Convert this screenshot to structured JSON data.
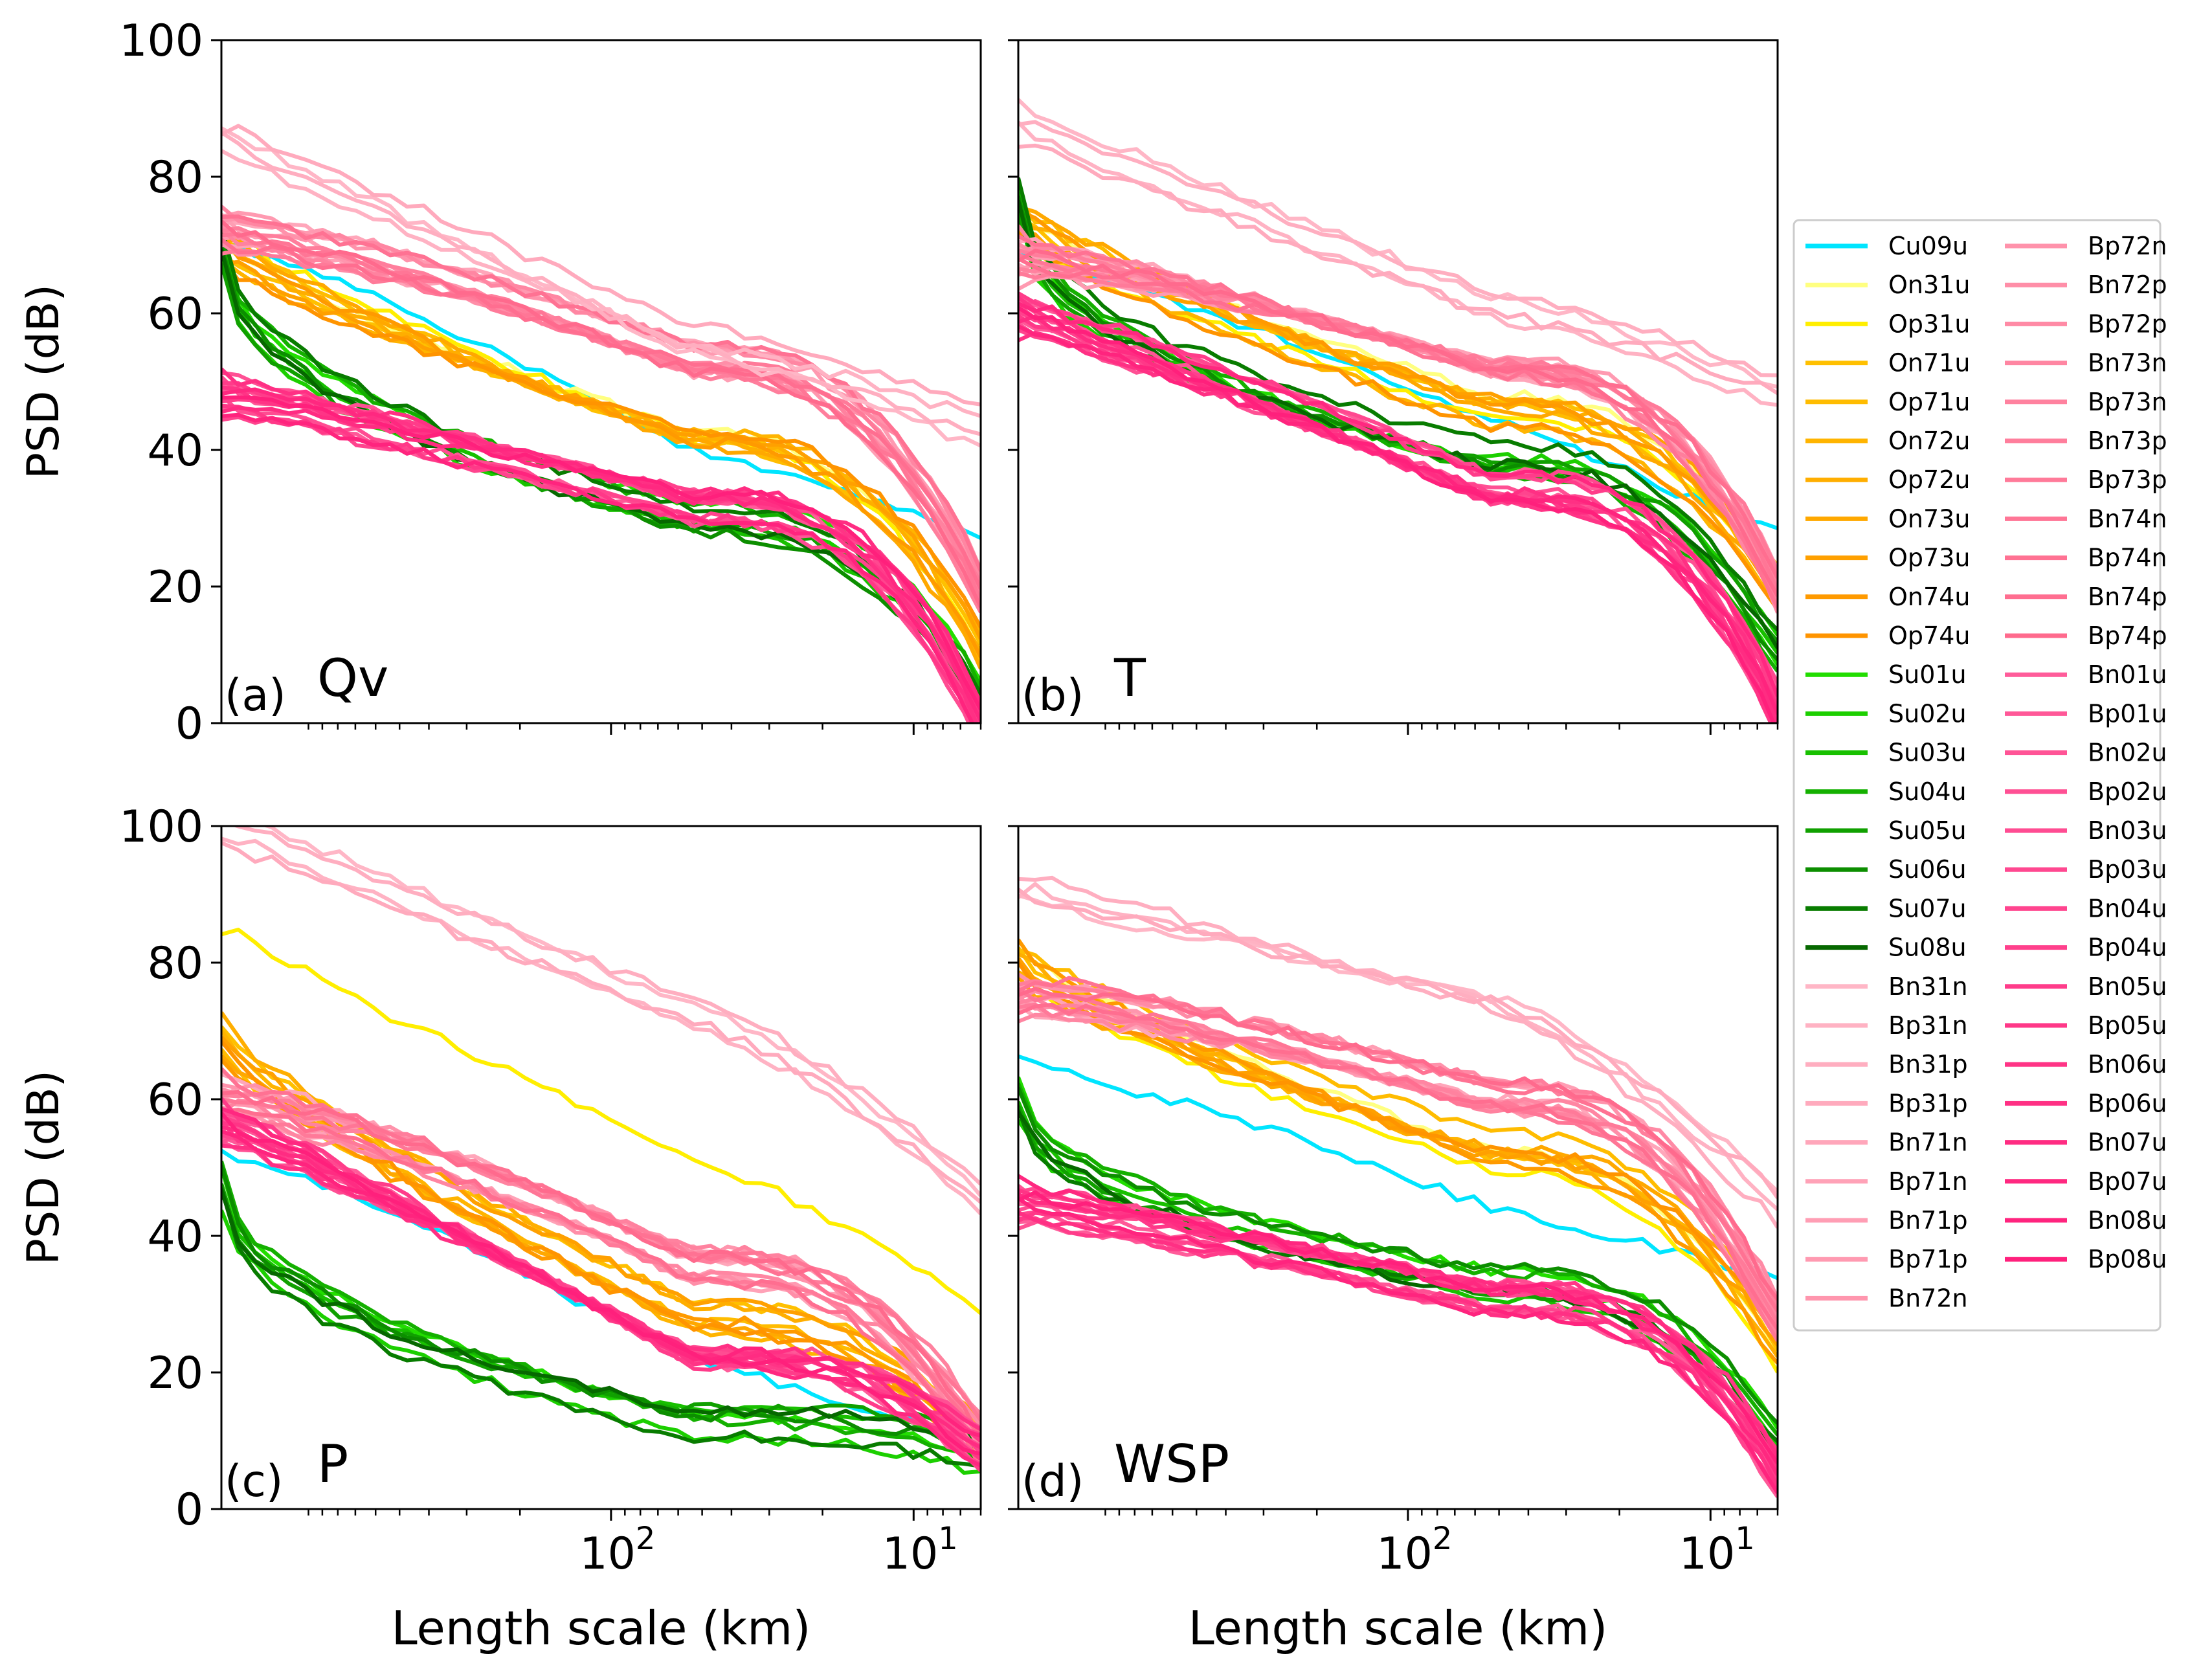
{
  "figure": {
    "ylabel": "PSD (dB)",
    "xlabel": "Length scale (km)"
  },
  "legend": {
    "entries": [
      {
        "name": "Cu09u",
        "color": "#00e5ff"
      },
      {
        "name": "On31u",
        "color": "#ffff80"
      },
      {
        "name": "Op31u",
        "color": "#ffee00"
      },
      {
        "name": "On71u",
        "color": "#ffc000"
      },
      {
        "name": "Op71u",
        "color": "#ffbc00"
      },
      {
        "name": "On72u",
        "color": "#ffb400"
      },
      {
        "name": "Op72u",
        "color": "#ffae00"
      },
      {
        "name": "On73u",
        "color": "#ffa800"
      },
      {
        "name": "Op73u",
        "color": "#ffa000"
      },
      {
        "name": "On74u",
        "color": "#ff9a00"
      },
      {
        "name": "Op74u",
        "color": "#ff9400"
      },
      {
        "name": "Su01u",
        "color": "#22dd00"
      },
      {
        "name": "Su02u",
        "color": "#1ccf00"
      },
      {
        "name": "Su03u",
        "color": "#18c000"
      },
      {
        "name": "Su04u",
        "color": "#14b000"
      },
      {
        "name": "Su05u",
        "color": "#10a000"
      },
      {
        "name": "Su06u",
        "color": "#0c8e00"
      },
      {
        "name": "Su07u",
        "color": "#087c00"
      },
      {
        "name": "Su08u",
        "color": "#066800"
      },
      {
        "name": "Bn31n",
        "color": "#ffb6c6"
      },
      {
        "name": "Bp31n",
        "color": "#ffb2c3"
      },
      {
        "name": "Bn31p",
        "color": "#ffaec0"
      },
      {
        "name": "Bp31p",
        "color": "#ffaabd"
      },
      {
        "name": "Bn71n",
        "color": "#ffa6ba"
      },
      {
        "name": "Bp71n",
        "color": "#ffa2b7"
      },
      {
        "name": "Bn71p",
        "color": "#ff9eb4"
      },
      {
        "name": "Bp71p",
        "color": "#ff9ab1"
      },
      {
        "name": "Bn72n",
        "color": "#ff96ae"
      },
      {
        "name": "Bp72n",
        "color": "#ff92ab"
      },
      {
        "name": "Bn72p",
        "color": "#ff8ea8"
      },
      {
        "name": "Bp72p",
        "color": "#ff8aa5"
      },
      {
        "name": "Bn73n",
        "color": "#ff86a2"
      },
      {
        "name": "Bp73n",
        "color": "#ff829f"
      },
      {
        "name": "Bn73p",
        "color": "#ff7e9c"
      },
      {
        "name": "Bp73p",
        "color": "#ff7a99"
      },
      {
        "name": "Bn74n",
        "color": "#ff7696"
      },
      {
        "name": "Bp74n",
        "color": "#ff7293"
      },
      {
        "name": "Bn74p",
        "color": "#ff6e90"
      },
      {
        "name": "Bp74p",
        "color": "#ff6a8d"
      },
      {
        "name": "Bn01u",
        "color": "#ff5c9a"
      },
      {
        "name": "Bp01u",
        "color": "#ff5898"
      },
      {
        "name": "Bn02u",
        "color": "#ff5496"
      },
      {
        "name": "Bp02u",
        "color": "#ff5094"
      },
      {
        "name": "Bn03u",
        "color": "#ff4c92"
      },
      {
        "name": "Bp03u",
        "color": "#ff4890"
      },
      {
        "name": "Bn04u",
        "color": "#ff448e"
      },
      {
        "name": "Bp04u",
        "color": "#ff408c"
      },
      {
        "name": "Bn05u",
        "color": "#ff3c8a"
      },
      {
        "name": "Bp05u",
        "color": "#ff3888"
      },
      {
        "name": "Bn06u",
        "color": "#ff3486"
      },
      {
        "name": "Bp06u",
        "color": "#ff3084"
      },
      {
        "name": "Bn07u",
        "color": "#ff2c82"
      },
      {
        "name": "Bp07u",
        "color": "#ff2880"
      },
      {
        "name": "Bn08u",
        "color": "#ff247e"
      },
      {
        "name": "Bp08u",
        "color": "#ff207c"
      }
    ]
  },
  "chart_data": [
    {
      "type": "line",
      "id": "a",
      "label": "(a)",
      "variable": "Qv",
      "ylim": [
        0,
        100
      ],
      "xlim_km": [
        1940,
        6
      ],
      "yticks": [
        0,
        20,
        40,
        60,
        80,
        100
      ],
      "xticks": [
        "10^2",
        "10^1"
      ],
      "xscale": "log",
      "xaxis_inverted": true,
      "groups": {
        "Cu": {
          "start": 70,
          "mid": 38,
          "end": 25
        },
        "O": {
          "start": 70,
          "mid": 42,
          "end": 12
        },
        "Su": {
          "start": 70,
          "mid": 30,
          "end": 4
        },
        "Bpale": {
          "start": 72,
          "mid": 53,
          "end": 20
        },
        "Bhigh": {
          "start": 85,
          "mid": 55,
          "end": 43
        },
        "Bdeep": {
          "start": 48,
          "mid": 32,
          "end": 0
        }
      }
    },
    {
      "type": "line",
      "id": "b",
      "label": "(b)",
      "variable": "T",
      "ylim": [
        0,
        100
      ],
      "xlim_km": [
        1940,
        6
      ],
      "yticks": [
        0,
        20,
        40,
        60,
        80,
        100
      ],
      "xticks": [
        "10^2",
        "10^1"
      ],
      "xscale": "log",
      "xaxis_inverted": true,
      "groups": {
        "Cu": {
          "start": 68,
          "mid": 46,
          "end": 30
        },
        "O": {
          "start": 74,
          "mid": 46,
          "end": 20
        },
        "Su": {
          "start": 76,
          "mid": 38,
          "end": 10
        },
        "Bpale": {
          "start": 68,
          "mid": 52,
          "end": 20
        },
        "Bhigh": {
          "start": 88,
          "mid": 62,
          "end": 50
        },
        "Bdeep": {
          "start": 60,
          "mid": 34,
          "end": 2
        }
      }
    },
    {
      "type": "line",
      "id": "c",
      "label": "(c)",
      "variable": "P",
      "ylim": [
        0,
        100
      ],
      "xlim_km": [
        1940,
        6
      ],
      "yticks": [
        0,
        20,
        40,
        60,
        80,
        100
      ],
      "xticks": [
        "10^2",
        "10^1"
      ],
      "xscale": "log",
      "xaxis_inverted": true,
      "groups": {
        "Cu": {
          "start": 52,
          "mid": 22,
          "end": 10
        },
        "Op31": {
          "start": 86,
          "mid": 50,
          "end": 27
        },
        "O": {
          "start": 69,
          "mid": 28,
          "end": 9
        },
        "Su": {
          "start": 48,
          "mid": 13,
          "end": 8
        },
        "Bpale": {
          "start": 60,
          "mid": 36,
          "end": 10
        },
        "Bhigh": {
          "start": 100,
          "mid": 72,
          "end": 45
        },
        "Bdeep": {
          "start": 56,
          "mid": 22,
          "end": 8
        }
      }
    },
    {
      "type": "line",
      "id": "d",
      "label": "(d)",
      "variable": "WSP",
      "ylim": [
        0,
        100
      ],
      "xlim_km": [
        1940,
        6
      ],
      "yticks": [
        0,
        20,
        40,
        60,
        80,
        100
      ],
      "xticks": [
        "10^2",
        "10^1"
      ],
      "xscale": "log",
      "xaxis_inverted": true,
      "groups": {
        "Cu": {
          "start": 65,
          "mid": 43,
          "end": 32
        },
        "O": {
          "start": 80,
          "mid": 52,
          "end": 24
        },
        "Su": {
          "start": 60,
          "mid": 33,
          "end": 10
        },
        "Bpale": {
          "start": 75,
          "mid": 60,
          "end": 27
        },
        "Bhigh": {
          "start": 92,
          "mid": 74,
          "end": 44
        },
        "Bdeep": {
          "start": 45,
          "mid": 31,
          "end": 5
        }
      }
    }
  ]
}
